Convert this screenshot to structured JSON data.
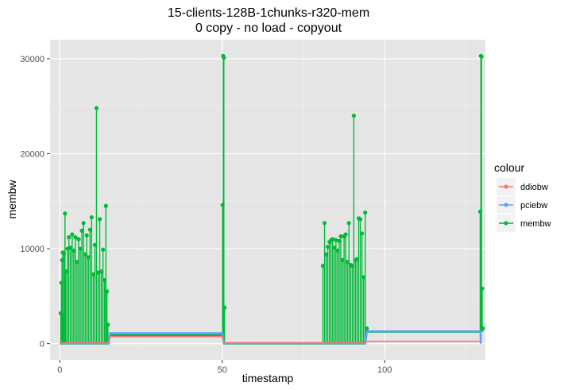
{
  "chart_data": {
    "type": "line",
    "title": "15-clients-128B-1chunks-r320-mem",
    "subtitle": "0 copy - no load - copyout",
    "xlabel": "timestamp",
    "ylabel": "membw",
    "xlim": [
      -3,
      131
    ],
    "ylim": [
      -1700,
      32000
    ],
    "x_ticks": [
      0,
      50,
      100
    ],
    "x_tick_labels": [
      "0",
      "50",
      "100"
    ],
    "y_ticks": [
      0,
      10000,
      20000,
      30000
    ],
    "y_tick_labels": [
      "0",
      "10000",
      "20000",
      "30000"
    ],
    "grid": true,
    "legend": {
      "title": "colour",
      "position": "right"
    },
    "colors": {
      "ddiobw": "#f8766d",
      "membw": "#00ba38",
      "pciebw": "#619cff"
    },
    "series": [
      {
        "name": "ddiobw",
        "color": "#f8766d",
        "points": [
          [
            0,
            80
          ],
          [
            15,
            80
          ],
          [
            15.5,
            750
          ],
          [
            50,
            750
          ],
          [
            50.5,
            80
          ],
          [
            94,
            80
          ],
          [
            94.5,
            250
          ],
          [
            129.5,
            250
          ]
        ]
      },
      {
        "name": "pciebw",
        "color": "#619cff",
        "points": [
          [
            0,
            50
          ],
          [
            15,
            50
          ],
          [
            15.5,
            1100
          ],
          [
            50,
            1100
          ],
          [
            50.5,
            50
          ],
          [
            94,
            50
          ],
          [
            94.5,
            1300
          ],
          [
            129.5,
            1300
          ],
          [
            129.6,
            0
          ]
        ]
      },
      {
        "name": "membw",
        "color": "#00ba38",
        "spikes": [
          [
            0.3,
            3200
          ],
          [
            0.5,
            6400
          ],
          [
            0.7,
            8800
          ],
          [
            0.9,
            9600
          ],
          [
            1.1,
            3000
          ],
          [
            1.3,
            9500
          ],
          [
            1.6,
            13700
          ],
          [
            1.9,
            7600
          ],
          [
            2.4,
            10000
          ],
          [
            2.8,
            11200
          ],
          [
            3.3,
            10100
          ],
          [
            3.8,
            11500
          ],
          [
            4.3,
            9800
          ],
          [
            4.8,
            11200
          ],
          [
            5.3,
            8600
          ],
          [
            5.8,
            11000
          ],
          [
            6.3,
            10000
          ],
          [
            6.8,
            11900
          ],
          [
            7.3,
            12700
          ],
          [
            7.8,
            9400
          ],
          [
            8.3,
            11400
          ],
          [
            8.8,
            9100
          ],
          [
            9.3,
            12000
          ],
          [
            9.8,
            13300
          ],
          [
            10.3,
            7300
          ],
          [
            10.8,
            10400
          ],
          [
            11.3,
            24800
          ],
          [
            11.8,
            7500
          ],
          [
            12.3,
            13100
          ],
          [
            12.8,
            7600
          ],
          [
            13.3,
            9900
          ],
          [
            13.8,
            6700
          ],
          [
            14.2,
            14500
          ],
          [
            14.5,
            5500
          ],
          [
            14.8,
            2000
          ],
          [
            50.1,
            14600
          ],
          [
            50.3,
            30300
          ],
          [
            50.5,
            30100
          ],
          [
            50.7,
            3800
          ],
          [
            81,
            8200
          ],
          [
            81.5,
            12700
          ],
          [
            82,
            9400
          ],
          [
            82.5,
            10200
          ],
          [
            83,
            10700
          ],
          [
            83.5,
            10900
          ],
          [
            84,
            11000
          ],
          [
            84.5,
            10100
          ],
          [
            85,
            10900
          ],
          [
            85.5,
            9800
          ],
          [
            86,
            10800
          ],
          [
            86.5,
            11300
          ],
          [
            87,
            8800
          ],
          [
            87.5,
            11300
          ],
          [
            88,
            11500
          ],
          [
            88.5,
            8600
          ],
          [
            89,
            12700
          ],
          [
            89.5,
            8300
          ],
          [
            90,
            8200
          ],
          [
            90.5,
            24000
          ],
          [
            91,
            8800
          ],
          [
            91.5,
            8900
          ],
          [
            92,
            13200
          ],
          [
            92.5,
            13100
          ],
          [
            93,
            11600
          ],
          [
            93.5,
            7000
          ],
          [
            94,
            13800
          ],
          [
            94.5,
            1600
          ],
          [
            129.4,
            13900
          ],
          [
            129.6,
            30300
          ],
          [
            129.8,
            30200
          ],
          [
            130,
            5800
          ],
          [
            130.2,
            1600
          ]
        ],
        "base": [
          [
            0,
            0
          ],
          [
            15,
            0
          ],
          [
            15.5,
            900
          ],
          [
            50,
            900
          ],
          [
            50.5,
            0
          ],
          [
            94,
            0
          ],
          [
            94.5,
            1250
          ],
          [
            129.5,
            1250
          ]
        ]
      }
    ]
  }
}
